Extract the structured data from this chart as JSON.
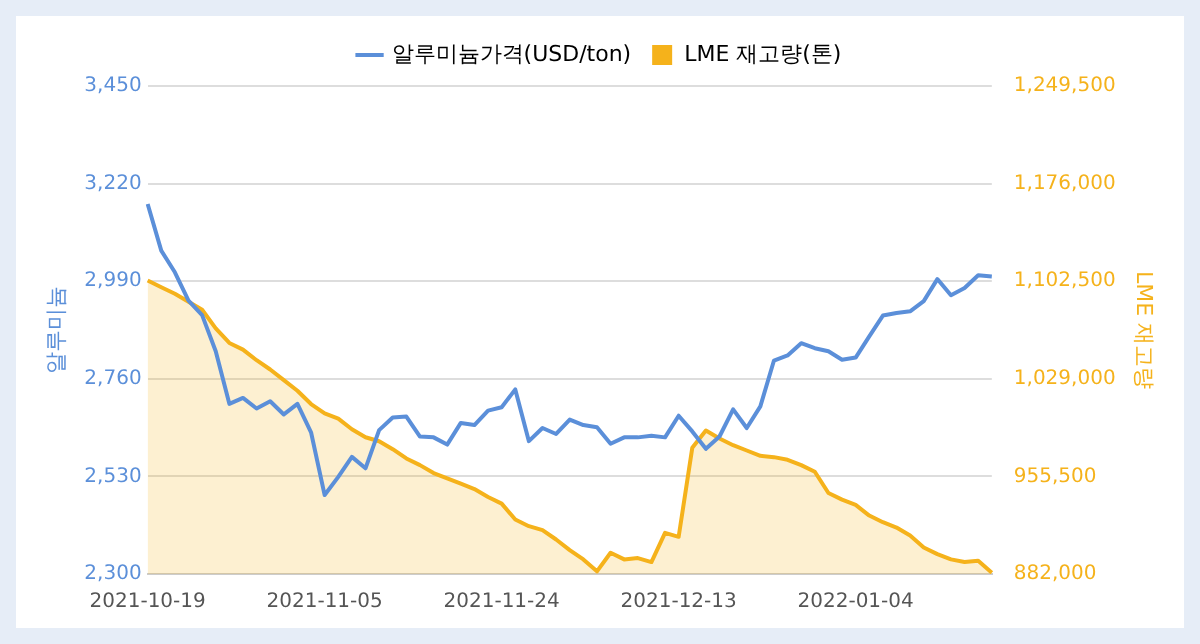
{
  "chart_data": {
    "type": "line",
    "categories": [
      "2021-10-19",
      null,
      null,
      null,
      null,
      null,
      null,
      null,
      null,
      null,
      null,
      null,
      null,
      "2021-11-05",
      null,
      null,
      null,
      null,
      null,
      null,
      null,
      null,
      null,
      null,
      null,
      null,
      "2021-11-24",
      null,
      null,
      null,
      null,
      null,
      null,
      null,
      null,
      null,
      null,
      null,
      null,
      "2021-12-13",
      null,
      null,
      null,
      null,
      null,
      null,
      null,
      null,
      null,
      null,
      null,
      null,
      "2022-01-04",
      null,
      null,
      null,
      null,
      null,
      null,
      null,
      null,
      null,
      null
    ],
    "series": [
      {
        "name": "알루미늄가격(USD/ton)",
        "type": "line",
        "color": "#5b8fd9",
        "values": [
          3172,
          3062,
          3011,
          2944,
          2910,
          2825,
          2701,
          2715,
          2690,
          2707,
          2676,
          2701,
          2634,
          2486,
          2529,
          2576,
          2549,
          2639,
          2669,
          2671,
          2624,
          2622,
          2605,
          2656,
          2651,
          2685,
          2693,
          2735,
          2613,
          2644,
          2630,
          2664,
          2651,
          2646,
          2607,
          2622,
          2622,
          2626,
          2622,
          2673,
          2636,
          2595,
          2624,
          2688,
          2644,
          2695,
          2803,
          2815,
          2844,
          2832,
          2825,
          2805,
          2810,
          2860,
          2909,
          2915,
          2919,
          2943,
          2995,
          2957,
          2974,
          3004,
          3001
        ]
      },
      {
        "name": "LME 재고량(톤)",
        "type": "area",
        "axis": "y2",
        "color": "#f5b21b",
        "values": [
          1103000,
          1098000,
          1093000,
          1087000,
          1081000,
          1067000,
          1056000,
          1051000,
          1043000,
          1036000,
          1028000,
          1020000,
          1010000,
          1003000,
          999000,
          991000,
          985000,
          982000,
          976000,
          969000,
          964000,
          958000,
          954000,
          950000,
          946000,
          940000,
          935000,
          923000,
          918000,
          915000,
          908000,
          900000,
          893000,
          884000,
          898000,
          893000,
          894000,
          891000,
          913000,
          910000,
          977000,
          990000,
          984000,
          979000,
          975000,
          971000,
          970000,
          968000,
          964000,
          959000,
          943000,
          938000,
          934000,
          926000,
          921000,
          917000,
          911000,
          902000,
          897000,
          893000,
          891000,
          892000,
          883000
        ]
      }
    ],
    "ylabel": "알루미늄",
    "y2label": "LME 재고량",
    "ylim": [
      2300,
      3450
    ],
    "yticks": [
      {
        "value": 2300,
        "label": "2,300"
      },
      {
        "value": 2530,
        "label": "2,530"
      },
      {
        "value": 2760,
        "label": "2,760"
      },
      {
        "value": 2990,
        "label": "2,990"
      },
      {
        "value": 3220,
        "label": "3,220"
      },
      {
        "value": 3450,
        "label": "3,450"
      }
    ],
    "y2lim": [
      882000,
      1249500
    ],
    "y2ticks": [
      {
        "value": 882000,
        "label": "882,000"
      },
      {
        "value": 955500,
        "label": "955,500"
      },
      {
        "value": 1029000,
        "label": "1,029,000"
      },
      {
        "value": 1102500,
        "label": "1,102,500"
      },
      {
        "value": 1176000,
        "label": "1,176,000"
      },
      {
        "value": 1249500,
        "label": "1,249,500"
      }
    ],
    "grid": "y",
    "legend": "top",
    "marker": "none"
  }
}
